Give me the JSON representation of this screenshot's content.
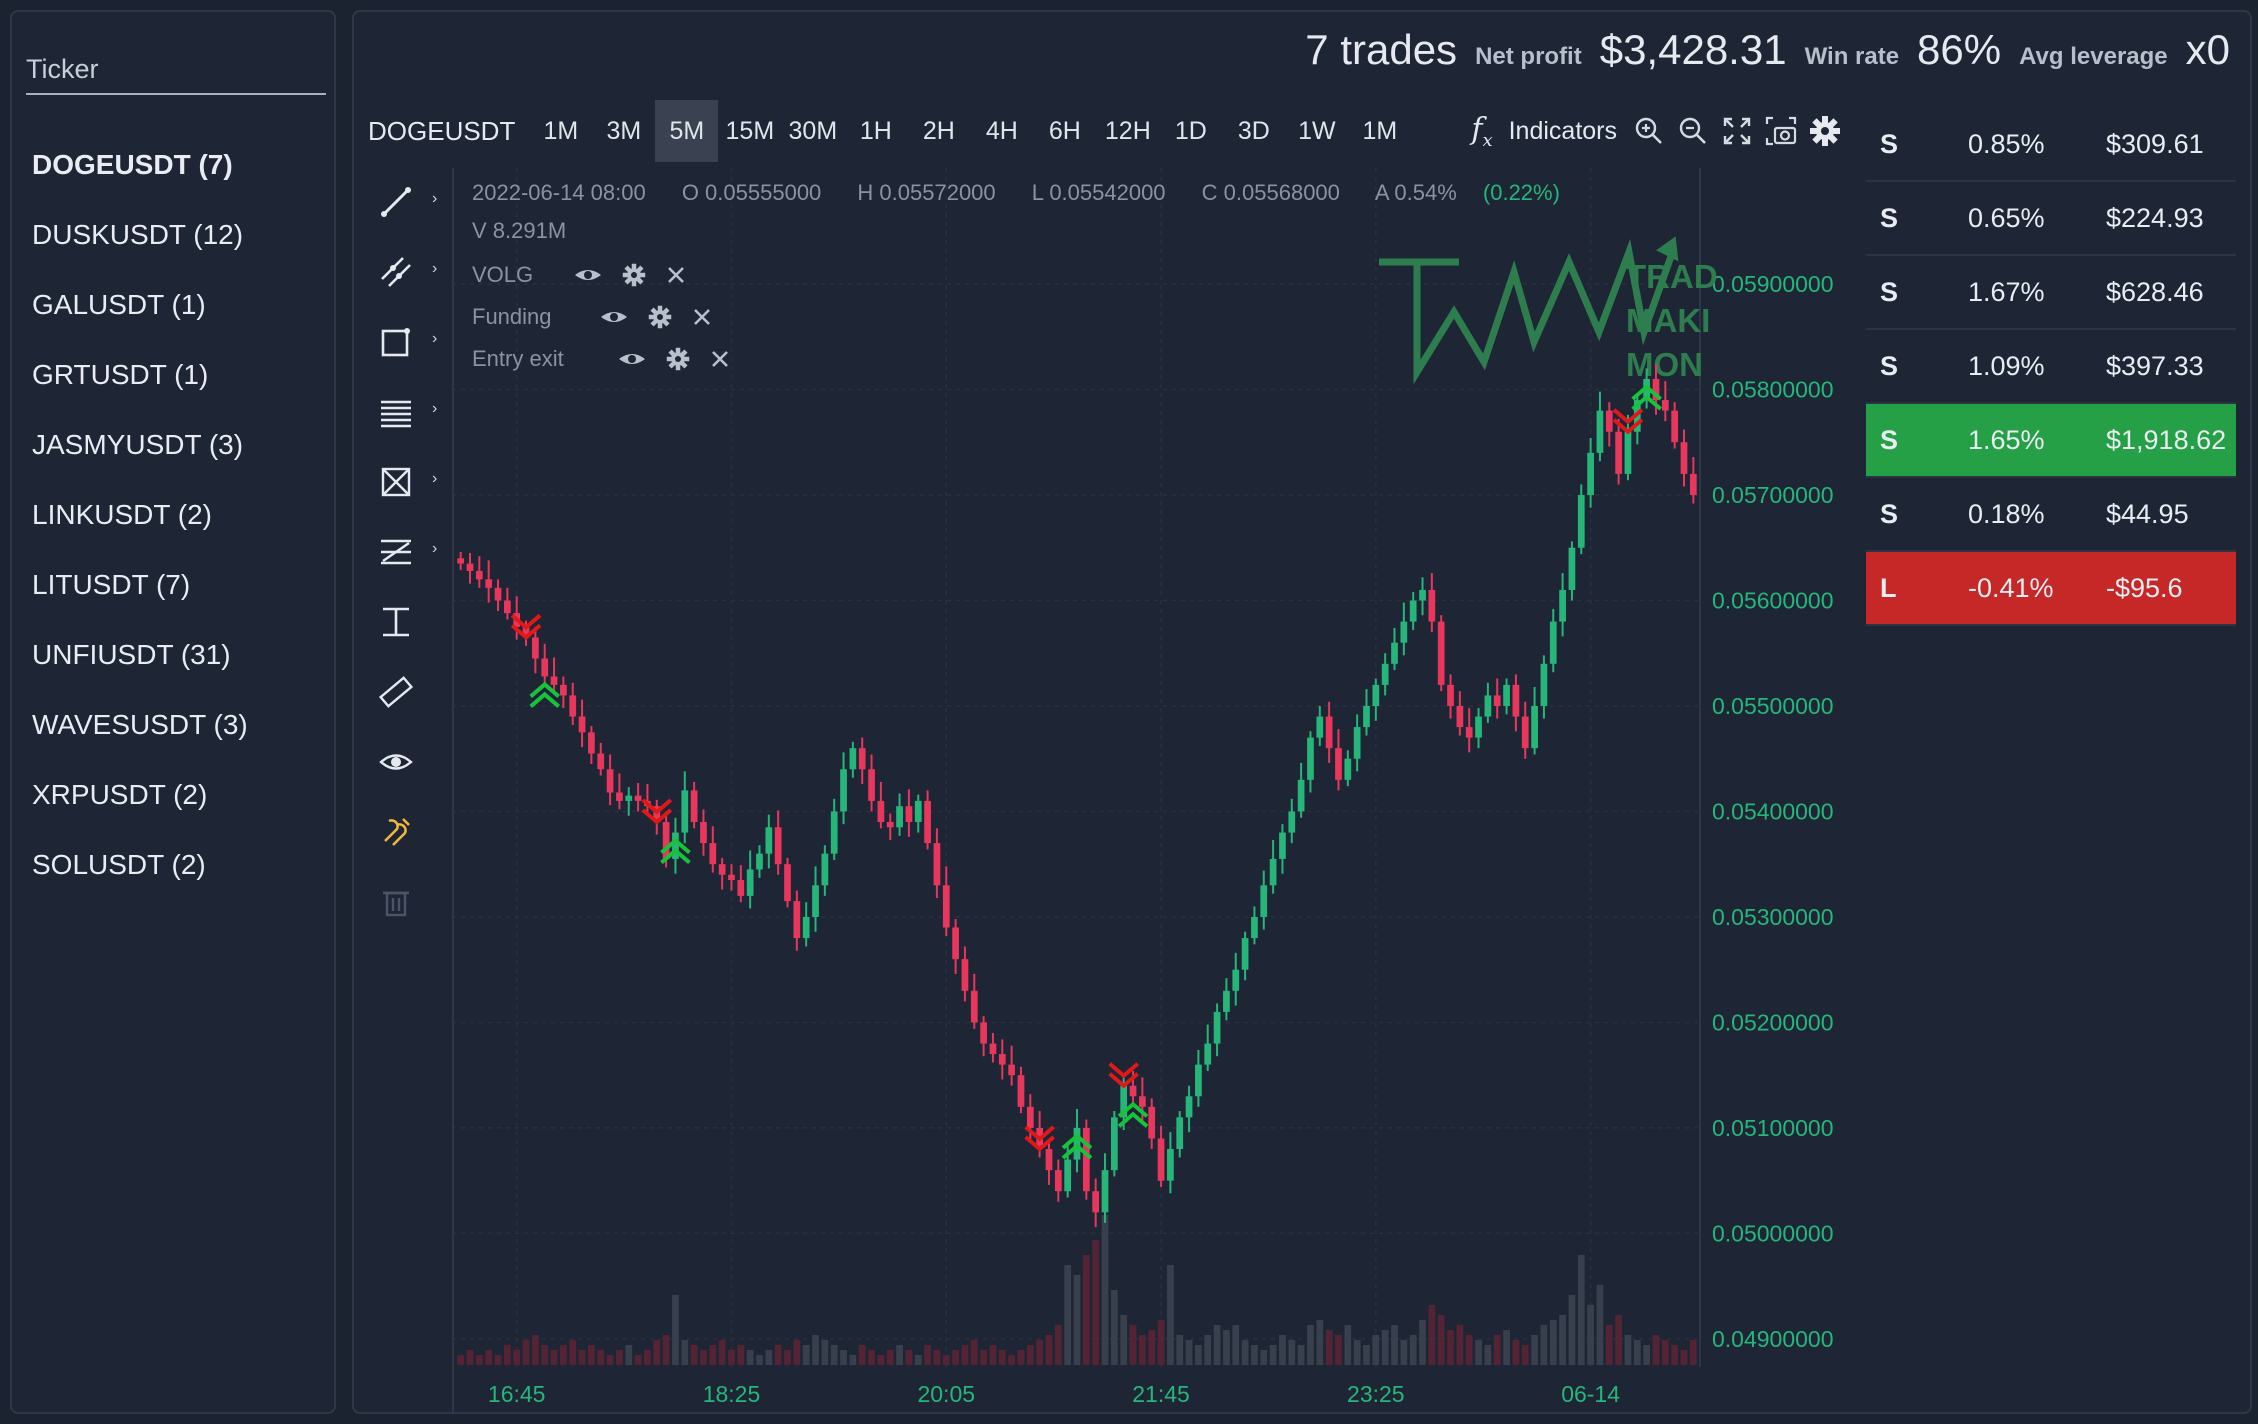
{
  "sidebar": {
    "ticker_label": "Ticker",
    "tickers": [
      {
        "label": "DOGEUSDT (7)",
        "active": true
      },
      {
        "label": "DUSKUSDT (12)"
      },
      {
        "label": "GALUSDT (1)"
      },
      {
        "label": "GRTUSDT (1)"
      },
      {
        "label": "JASMYUSDT (3)"
      },
      {
        "label": "LINKUSDT (2)"
      },
      {
        "label": "LITUSDT (7)"
      },
      {
        "label": "UNFIUSDT (31)"
      },
      {
        "label": "WAVESUSDT (3)"
      },
      {
        "label": "XRPUSDT (2)"
      },
      {
        "label": "SOLUSDT (2)"
      }
    ]
  },
  "stats": {
    "trades": "7 trades",
    "net_profit_label": "Net profit",
    "net_profit": "$3,428.31",
    "win_rate_label": "Win rate",
    "win_rate": "86%",
    "avg_leverage_label": "Avg leverage",
    "avg_leverage": "x0"
  },
  "toolbar": {
    "symbol": "DOGEUSDT",
    "timeframes": [
      "1M",
      "3M",
      "5M",
      "15M",
      "30M",
      "1H",
      "2H",
      "4H",
      "6H",
      "12H",
      "1D",
      "3D",
      "1W",
      "1M"
    ],
    "active_timeframe_index": 2,
    "fx_glyph": "fx",
    "indicators_label": "Indicators",
    "icons": [
      "zoom-in-icon",
      "zoom-out-icon",
      "fullscreen-icon",
      "screenshot-icon",
      "settings-gear-icon"
    ]
  },
  "drawing_tools": [
    "trend-line-icon",
    "parallel-channel-icon",
    "rectangle-icon",
    "horizontal-lines-icon",
    "pattern-icon",
    "fib-icon",
    "measure-icon",
    "ruler-icon",
    "visibility-eye-icon",
    "magnet-icon",
    "trash-icon"
  ],
  "legend": {
    "date": "2022-06-14 08:00",
    "open": "O 0.05555000",
    "high": "H 0.05572000",
    "low": "L 0.05542000",
    "close": "C 0.05568000",
    "amplitude": "A 0.54%",
    "change": "(0.22%)",
    "volume": "V 8.291M",
    "indicators": [
      "VOLG",
      "Funding",
      "Entry exit"
    ]
  },
  "watermark": {
    "line1": "TRAD",
    "line2": "MAKI",
    "line3": "MON",
    "color": "#2e7d4f"
  },
  "trades_panel": [
    {
      "side": "S",
      "pct": "0.85%",
      "amount": "$309.61",
      "status": "neutral"
    },
    {
      "side": "S",
      "pct": "0.65%",
      "amount": "$224.93",
      "status": "neutral"
    },
    {
      "side": "S",
      "pct": "1.67%",
      "amount": "$628.46",
      "status": "neutral"
    },
    {
      "side": "S",
      "pct": "1.09%",
      "amount": "$397.33",
      "status": "neutral"
    },
    {
      "side": "S",
      "pct": "1.65%",
      "amount": "$1,918.62",
      "status": "win"
    },
    {
      "side": "S",
      "pct": "0.18%",
      "amount": "$44.95",
      "status": "neutral"
    },
    {
      "side": "L",
      "pct": "-0.41%",
      "amount": "-$95.6",
      "status": "loss"
    }
  ],
  "chart_data": {
    "type": "candlestick",
    "x_ticks": [
      "16:45",
      "18:25",
      "20:05",
      "21:45",
      "23:25",
      "06-14"
    ],
    "y_ticks": [
      "0.05900000",
      "0.05800000",
      "0.05700000",
      "0.05600000",
      "0.05500000",
      "0.05400000",
      "0.05300000",
      "0.05200000",
      "0.05100000",
      "0.05000000",
      "0.04900000"
    ],
    "y_range": [
      0.0488,
      0.0601
    ],
    "up_color": "#26b67a",
    "down_color": "#e8365d",
    "closes": [
      0.05635,
      0.05628,
      0.0562,
      0.05612,
      0.056,
      0.05588,
      0.05575,
      0.05565,
      0.05545,
      0.05528,
      0.0552,
      0.0551,
      0.0549,
      0.05475,
      0.05455,
      0.0544,
      0.05418,
      0.0541,
      0.05415,
      0.0541,
      0.05405,
      0.0539,
      0.05355,
      0.0538,
      0.0542,
      0.0539,
      0.0537,
      0.0535,
      0.0534,
      0.05335,
      0.0532,
      0.05345,
      0.0536,
      0.05385,
      0.0535,
      0.05315,
      0.0528,
      0.053,
      0.0533,
      0.0536,
      0.054,
      0.0544,
      0.0546,
      0.0544,
      0.0541,
      0.0539,
      0.05385,
      0.05405,
      0.0539,
      0.0541,
      0.0537,
      0.0533,
      0.0529,
      0.0526,
      0.0523,
      0.052,
      0.0518,
      0.0517,
      0.0516,
      0.0515,
      0.0512,
      0.051,
      0.0508,
      0.0506,
      0.0504,
      0.0507,
      0.051,
      0.0504,
      0.0502,
      0.0506,
      0.0511,
      0.0514,
      0.0513,
      0.0512,
      0.0509,
      0.0505,
      0.0508,
      0.0511,
      0.0513,
      0.0516,
      0.0518,
      0.0521,
      0.0523,
      0.0525,
      0.0528,
      0.053,
      0.0533,
      0.05355,
      0.0538,
      0.054,
      0.0543,
      0.0547,
      0.0549,
      0.0546,
      0.0543,
      0.0545,
      0.0548,
      0.055,
      0.0552,
      0.0554,
      0.0556,
      0.0558,
      0.056,
      0.0561,
      0.0558,
      0.0552,
      0.055,
      0.0548,
      0.0547,
      0.0549,
      0.0551,
      0.055,
      0.0552,
      0.0549,
      0.0546,
      0.055,
      0.0554,
      0.0558,
      0.0561,
      0.0565,
      0.057,
      0.0574,
      0.0578,
      0.0576,
      0.0572,
      0.0576,
      0.0579,
      0.0581,
      0.0579,
      0.0578,
      0.0575,
      0.0572,
      0.057
    ],
    "volumes": [
      2,
      3,
      2,
      3,
      2,
      4,
      3,
      5,
      6,
      4,
      3,
      4,
      5,
      3,
      4,
      3,
      2,
      3,
      4,
      2,
      3,
      5,
      6,
      14,
      5,
      4,
      3,
      4,
      5,
      3,
      4,
      3,
      2,
      3,
      4,
      3,
      5,
      4,
      6,
      5,
      4,
      3,
      2,
      4,
      3,
      2,
      3,
      4,
      3,
      2,
      4,
      3,
      2,
      3,
      4,
      5,
      3,
      4,
      3,
      2,
      3,
      4,
      5,
      6,
      8,
      20,
      18,
      22,
      25,
      30,
      15,
      10,
      8,
      6,
      7,
      9,
      20,
      6,
      5,
      4,
      6,
      8,
      7,
      8,
      5,
      4,
      3,
      4,
      6,
      5,
      4,
      8,
      9,
      7,
      6,
      8,
      5,
      4,
      6,
      7,
      8,
      5,
      6,
      9,
      12,
      10,
      7,
      8,
      6,
      5,
      4,
      6,
      7,
      5,
      4,
      6,
      8,
      9,
      10,
      14,
      22,
      12,
      16,
      8,
      10,
      6,
      5,
      4,
      6,
      5,
      4,
      3,
      5
    ]
  },
  "signals": [
    {
      "type": "short-entry",
      "index": 7
    },
    {
      "type": "long-exit",
      "index": 9
    },
    {
      "type": "short-entry",
      "index": 21
    },
    {
      "type": "long-exit",
      "index": 23
    },
    {
      "type": "short-entry",
      "index": 62
    },
    {
      "type": "short-entry",
      "index": 71
    },
    {
      "type": "long-exit",
      "index": 66
    },
    {
      "type": "long-exit",
      "index": 72
    },
    {
      "type": "short-entry",
      "index": 125
    },
    {
      "type": "long-exit",
      "index": 127
    }
  ]
}
